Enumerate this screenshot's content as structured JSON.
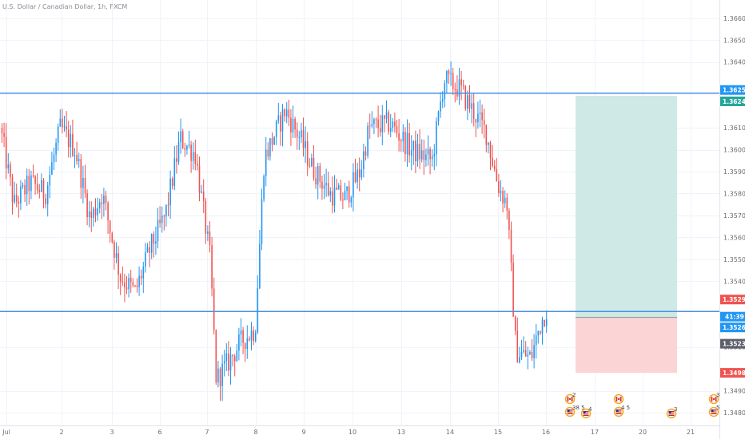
{
  "header": {
    "title": "U.S. Dollar / Canadian Dollar, 1h, FXCM"
  },
  "colors": {
    "up": "#2196f3",
    "down": "#ef5350",
    "hline": "#4a90e2",
    "target_fill": "#cfeae6",
    "stop_fill": "#fbd5d5",
    "label_blue": "#2196f3",
    "label_teal": "#26a69a",
    "label_red": "#ef5350",
    "label_gray": "#5d606b"
  },
  "chart_data": {
    "type": "candlestick",
    "symbol": "U.S. Dollar / Canadian Dollar",
    "interval": "1h",
    "source": "FXCM",
    "x_ticks": [
      "Jul",
      "2",
      "3",
      "6",
      "7",
      "8",
      "9",
      "10",
      "13",
      "14",
      "15",
      "16",
      "17",
      "20",
      "21"
    ],
    "y_ticks": [
      "1.36600",
      "1.36500",
      "1.36400",
      "1.36100",
      "1.36000",
      "1.35900",
      "1.35800",
      "1.35700",
      "1.35600",
      "1.35500",
      "1.35400",
      "1.35100",
      "1.34900",
      "1.34800"
    ],
    "ylim": [
      1.34742,
      1.36683
    ],
    "x_days": [
      0,
      14.6
    ],
    "candle_path": [
      [
        0,
        1.361
      ],
      [
        0.45,
        1.3575
      ],
      [
        1.0,
        1.3585
      ],
      [
        1.5,
        1.358
      ],
      [
        2.0,
        1.361
      ],
      [
        2.5,
        1.36
      ],
      [
        3.0,
        1.3568
      ],
      [
        3.4,
        1.358
      ],
      [
        4.0,
        1.3542
      ],
      [
        4.5,
        1.3535
      ],
      [
        5.0,
        1.3555
      ],
      [
        5.5,
        1.357
      ],
      [
        6.0,
        1.3605
      ],
      [
        6.5,
        1.3598
      ],
      [
        7.0,
        1.355
      ],
      [
        7.2,
        1.3495
      ],
      [
        7.7,
        1.3505
      ],
      [
        8.0,
        1.3512
      ],
      [
        8.5,
        1.3518
      ],
      [
        8.8,
        1.3596
      ],
      [
        9.5,
        1.3618
      ],
      [
        10.0,
        1.3605
      ],
      [
        10.4,
        1.3592
      ],
      [
        11.0,
        1.358
      ],
      [
        11.5,
        1.3578
      ],
      [
        12.0,
        1.359
      ],
      [
        12.3,
        1.361
      ],
      [
        13.0,
        1.3612
      ],
      [
        13.7,
        1.36
      ],
      [
        14.4,
        1.3595
      ],
      [
        14.8,
        1.3632
      ],
      [
        15.3,
        1.3628
      ],
      [
        16.2,
        1.3608
      ],
      [
        16.6,
        1.3584
      ],
      [
        16.9,
        1.3575
      ],
      [
        17.2,
        1.3508
      ],
      [
        17.7,
        1.3505
      ],
      [
        18.0,
        1.352
      ],
      [
        18.3,
        1.353
      ]
    ],
    "horizontal_lines": [
      1.36258,
      1.35262
    ],
    "price_labels": [
      {
        "value": 1.36258,
        "text": "1.36258",
        "kind": "blue"
      },
      {
        "value": 1.36246,
        "text": "1.36246",
        "kind": "teal"
      },
      {
        "value": 1.35291,
        "text": "1.35291",
        "kind": "red"
      },
      {
        "value": 1.35262,
        "text": "1.35262",
        "kind": "blue"
      },
      {
        "value": 1.35235,
        "text": "1.35235",
        "kind": "gray"
      },
      {
        "value": 1.34982,
        "text": "1.34982",
        "kind": "red"
      }
    ],
    "countdown": "41:39",
    "position": {
      "entry": 1.35235,
      "target": 1.36246,
      "stop": 1.34982
    },
    "events": [
      {
        "flag": "ca",
        "count": "2",
        "tick": "17"
      },
      {
        "flag": "us",
        "count": "38 5",
        "tick": "17"
      },
      {
        "flag": "us",
        "count": "4",
        "tick": "17"
      },
      {
        "flag": "ca",
        "count": "",
        "tick": "20"
      },
      {
        "flag": "us",
        "count": "4 5",
        "tick": "20"
      },
      {
        "flag": "us",
        "count": "3",
        "tick": "21"
      },
      {
        "flag": "ca",
        "count": "3",
        "tick": "21"
      },
      {
        "flag": "us",
        "count": "5",
        "tick": "21"
      }
    ]
  }
}
